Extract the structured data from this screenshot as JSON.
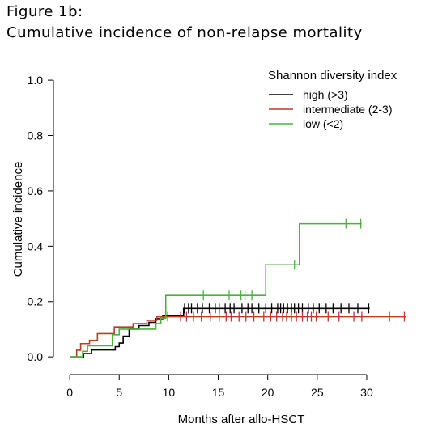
{
  "figure_label": "Figure 1b:",
  "figure_title": "Cumulative incidence of non-relapse mortality",
  "chart_data": {
    "type": "line",
    "step": true,
    "xlabel": "Months after allo-HSCT",
    "ylabel": "Cumulative incidence",
    "xlim": [
      -0.5,
      34.5
    ],
    "ylim": [
      -0.02,
      1.05
    ],
    "xticks": [
      0,
      5,
      10,
      15,
      20,
      25,
      30
    ],
    "yticks": [
      0.0,
      0.2,
      0.4,
      0.6,
      0.8,
      1.0
    ],
    "ytick_labels": [
      "0.0",
      "0.2",
      "0.4",
      "0.6",
      "0.8",
      "1.0"
    ],
    "grid": false,
    "legend": {
      "title": "Shannon diversity index",
      "position": "top-right",
      "entries": [
        "high (>3)",
        "intermediate (2-3)",
        "low (<2)"
      ]
    },
    "series": [
      {
        "name": "high (>3)",
        "color": "#000000",
        "x": [
          0,
          1.4,
          2.2,
          4.6,
          5.0,
          5.4,
          6.0,
          7.0,
          8.0,
          8.7,
          9.4,
          11.5,
          30.3
        ],
        "y": [
          0.0,
          0.012,
          0.025,
          0.037,
          0.05,
          0.075,
          0.1,
          0.113,
          0.125,
          0.138,
          0.15,
          0.175,
          0.175
        ],
        "censor_x": [
          11.6,
          12.0,
          12.3,
          12.9,
          13.4,
          14.1,
          14.7,
          15.1,
          15.7,
          16.2,
          16.6,
          17.4,
          18.0,
          18.4,
          19.1,
          19.8,
          20.4,
          21.0,
          21.3,
          21.6,
          22.0,
          22.4,
          22.7,
          23.1,
          23.5,
          24.1,
          24.6,
          25.2,
          25.9,
          26.6,
          27.4,
          28.2,
          29.1,
          30.2
        ]
      },
      {
        "name": "intermediate (2-3)",
        "color": "#c0392b",
        "x": [
          0,
          0.7,
          1.1,
          2.0,
          2.8,
          4.5,
          6.4,
          7.8,
          8.8,
          34.0
        ],
        "y": [
          0.0,
          0.024,
          0.048,
          0.06,
          0.084,
          0.108,
          0.12,
          0.132,
          0.145,
          0.145
        ],
        "censor_x": [
          9.9,
          11.2,
          11.8,
          12.5,
          13.3,
          14.2,
          15.1,
          15.8,
          16.3,
          17.1,
          17.8,
          18.6,
          19.6,
          20.3,
          20.9,
          21.5,
          21.9,
          22.4,
          22.9,
          23.5,
          24.0,
          24.4,
          24.9,
          26.1,
          27.2,
          28.7,
          29.5,
          32.3,
          33.8
        ]
      },
      {
        "name": "low (<2)",
        "color": "#49b23a",
        "x": [
          0,
          1.3,
          1.8,
          4.3,
          5.0,
          8.7,
          9.2,
          9.7,
          19.8,
          23.2,
          29.5
        ],
        "y": [
          0.0,
          0.02,
          0.04,
          0.08,
          0.1,
          0.12,
          0.14,
          0.222,
          0.333,
          0.481,
          0.481
        ],
        "censor_x": [
          13.5,
          16.1,
          17.3,
          17.7,
          18.4,
          22.7,
          27.9,
          29.4
        ]
      }
    ]
  }
}
